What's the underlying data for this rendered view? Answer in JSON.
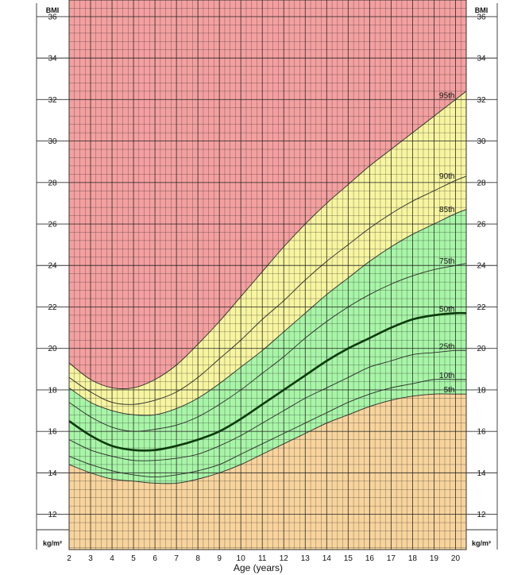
{
  "chart_data": {
    "type": "line",
    "title": "",
    "xlabel": "Age (years)",
    "ylabel": "BMI",
    "unit_label": "kg/m²",
    "xlim": [
      2,
      20.5
    ],
    "ylim": [
      10.3,
      36.8
    ],
    "x_ticks": [
      2,
      3,
      4,
      5,
      6,
      7,
      8,
      9,
      10,
      11,
      12,
      13,
      14,
      15,
      16,
      17,
      18,
      19,
      20
    ],
    "y_ticks": [
      12,
      14,
      16,
      18,
      20,
      22,
      24,
      26,
      28,
      30,
      32,
      34,
      36
    ],
    "grid": true,
    "zones": [
      {
        "name": "below-5th",
        "color": "#f8d49d"
      },
      {
        "name": "5th-85th",
        "color": "#a8f5a8"
      },
      {
        "name": "85th-95th",
        "color": "#f7f5a0"
      },
      {
        "name": "above-95th",
        "color": "#f4a0a0"
      }
    ],
    "x": [
      2,
      3,
      4,
      5,
      6,
      7,
      8,
      9,
      10,
      11,
      12,
      13,
      14,
      15,
      16,
      17,
      18,
      19,
      20,
      20.5
    ],
    "series": [
      {
        "name": "5th",
        "values": [
          14.4,
          14.0,
          13.7,
          13.6,
          13.5,
          13.5,
          13.7,
          14.0,
          14.4,
          14.9,
          15.4,
          15.9,
          16.4,
          16.8,
          17.2,
          17.5,
          17.7,
          17.8,
          17.8,
          17.8
        ]
      },
      {
        "name": "10th",
        "values": [
          14.8,
          14.4,
          14.1,
          13.9,
          13.8,
          13.9,
          14.1,
          14.4,
          14.9,
          15.4,
          15.9,
          16.4,
          16.9,
          17.4,
          17.8,
          18.1,
          18.3,
          18.5,
          18.5,
          18.5
        ]
      },
      {
        "name": "25th",
        "values": [
          15.6,
          15.1,
          14.8,
          14.6,
          14.6,
          14.7,
          14.9,
          15.3,
          15.8,
          16.4,
          17.0,
          17.6,
          18.1,
          18.6,
          19.1,
          19.4,
          19.7,
          19.8,
          19.9,
          19.9
        ]
      },
      {
        "name": "50th",
        "values": [
          16.5,
          15.8,
          15.3,
          15.1,
          15.1,
          15.3,
          15.6,
          16.0,
          16.6,
          17.3,
          18.0,
          18.7,
          19.4,
          20.0,
          20.5,
          21.0,
          21.4,
          21.6,
          21.7,
          21.7
        ]
      },
      {
        "name": "75th",
        "values": [
          17.4,
          16.7,
          16.2,
          16.0,
          16.1,
          16.3,
          16.7,
          17.3,
          18.0,
          18.8,
          19.6,
          20.5,
          21.3,
          22.0,
          22.6,
          23.1,
          23.5,
          23.8,
          24.0,
          24.1
        ]
      },
      {
        "name": "85th",
        "values": [
          18.1,
          17.4,
          17.0,
          16.8,
          16.8,
          17.1,
          17.6,
          18.3,
          19.1,
          19.9,
          20.8,
          21.7,
          22.6,
          23.4,
          24.2,
          24.9,
          25.5,
          26.0,
          26.5,
          26.7
        ]
      },
      {
        "name": "90th",
        "values": [
          18.6,
          17.9,
          17.4,
          17.3,
          17.5,
          17.9,
          18.6,
          19.5,
          20.4,
          21.4,
          22.3,
          23.3,
          24.2,
          25.0,
          25.8,
          26.5,
          27.1,
          27.6,
          28.1,
          28.3
        ]
      },
      {
        "name": "95th",
        "values": [
          19.3,
          18.5,
          18.1,
          18.1,
          18.5,
          19.2,
          20.2,
          21.3,
          22.5,
          23.7,
          24.9,
          26.0,
          27.0,
          27.9,
          28.8,
          29.6,
          30.4,
          31.2,
          32.0,
          32.4
        ]
      }
    ],
    "highlight_series": "50th"
  }
}
